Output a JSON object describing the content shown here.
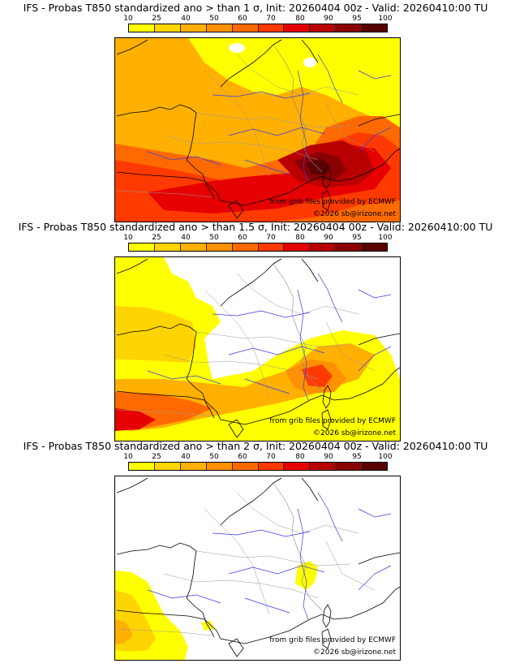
{
  "colorbar": {
    "levels": [
      "10",
      "25",
      "40",
      "50",
      "60",
      "70",
      "80",
      "90",
      "95",
      "100"
    ],
    "colors": [
      "#ffff00",
      "#ffd400",
      "#ffb000",
      "#ff9000",
      "#ff6a00",
      "#ff3a00",
      "#e60000",
      "#b80000",
      "#8a0000",
      "#5a0000"
    ]
  },
  "credits": {
    "source": "from grib files provided by ECMWF",
    "copyright": "©2026 sb@irizone.net"
  },
  "panels": [
    {
      "title": "IFS - Probas T850  standardized ano > than 1 σ, Init: 20260404 00z - Valid: 20260410:00 TU"
    },
    {
      "title": "IFS - Probas T850  standardized ano > than 1.5 σ, Init: 20260404 00z - Valid: 20260410:00 TU"
    },
    {
      "title": "IFS - Probas T850  standardized ano > than 2 σ, Init: 20260404 00z - Valid: 20260410:00 TU"
    }
  ]
}
